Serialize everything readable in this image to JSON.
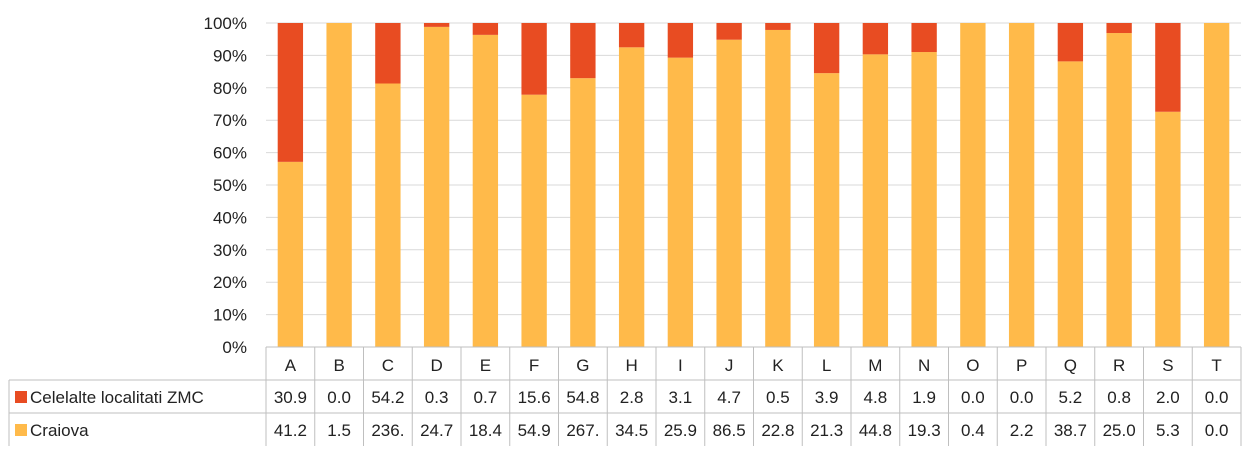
{
  "chart_data": {
    "type": "bar",
    "stacked": "percent",
    "categories": [
      "A",
      "B",
      "C",
      "D",
      "E",
      "F",
      "G",
      "H",
      "I",
      "J",
      "K",
      "L",
      "M",
      "N",
      "O",
      "P",
      "Q",
      "R",
      "S",
      "T"
    ],
    "series": [
      {
        "name": "Craiova",
        "color": "#FFBA4A",
        "values": [
          41.2,
          1.5,
          236.0,
          24.7,
          18.4,
          54.9,
          267.0,
          34.5,
          25.9,
          86.5,
          22.8,
          21.3,
          44.8,
          19.3,
          0.4,
          2.2,
          38.7,
          25.0,
          5.3,
          0.0
        ],
        "labels": [
          "41.2",
          "1.5",
          "236.",
          "24.7",
          "18.4",
          "54.9",
          "267.",
          "34.5",
          "25.9",
          "86.5",
          "22.8",
          "21.3",
          "44.8",
          "19.3",
          "0.4",
          "2.2",
          "38.7",
          "25.0",
          "5.3",
          "0.0"
        ]
      },
      {
        "name": "Celelalte localitati ZMC",
        "color": "#E84C22",
        "values": [
          30.9,
          0.0,
          54.2,
          0.3,
          0.7,
          15.6,
          54.8,
          2.8,
          3.1,
          4.7,
          0.5,
          3.9,
          4.8,
          1.9,
          0.0,
          0.0,
          5.2,
          0.8,
          2.0,
          0.0
        ],
        "labels": [
          "30.9",
          "0.0",
          "54.2",
          "0.3",
          "0.7",
          "15.6",
          "54.8",
          "2.8",
          "3.1",
          "4.7",
          "0.5",
          "3.9",
          "4.8",
          "1.9",
          "0.0",
          "0.0",
          "5.2",
          "0.8",
          "2.0",
          "0.0"
        ]
      }
    ],
    "y_ticks": [
      "0%",
      "10%",
      "20%",
      "30%",
      "40%",
      "50%",
      "60%",
      "70%",
      "80%",
      "90%",
      "100%"
    ],
    "ylim": [
      0,
      100
    ],
    "grid": true,
    "legend": "data-table-rows",
    "table_row_order": [
      "Celelalte localitati ZMC",
      "Craiova"
    ],
    "gridline_color": "#D9D9D9",
    "table_border_color": "#BFBFBF"
  }
}
